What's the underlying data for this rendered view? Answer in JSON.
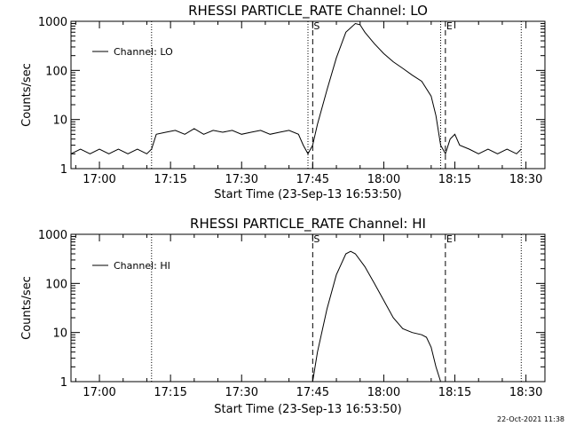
{
  "footer": {
    "timestamp": "22-Oct-2021 11:38"
  },
  "chart_data": [
    {
      "type": "line",
      "title": "RHESSI PARTICLE_RATE Channel: LO",
      "xlabel": "Start Time (23-Sep-13 16:53:50)",
      "ylabel": "Counts/sec",
      "yscale": "log",
      "xlim": [
        "16:54",
        "18:34"
      ],
      "ylim": [
        1,
        1000
      ],
      "x_ticks": [
        "17:00",
        "17:15",
        "17:30",
        "17:45",
        "18:00",
        "18:15",
        "18:30"
      ],
      "y_ticks": [
        "1",
        "10",
        "100",
        "1000"
      ],
      "legend": {
        "position": "top-left",
        "entries": [
          "Channel: LO"
        ]
      },
      "markers": {
        "S": "17:45",
        "E": "18:13"
      },
      "dotted_lines": [
        "17:11",
        "17:44",
        "18:12",
        "18:29"
      ],
      "series": [
        {
          "name": "Channel: LO",
          "x": [
            "16:54",
            "16:56",
            "16:58",
            "17:00",
            "17:02",
            "17:04",
            "17:06",
            "17:08",
            "17:10",
            "17:11",
            "17:12",
            "17:14",
            "17:16",
            "17:18",
            "17:20",
            "17:22",
            "17:24",
            "17:26",
            "17:28",
            "17:30",
            "17:32",
            "17:34",
            "17:36",
            "17:38",
            "17:40",
            "17:42",
            "17:43",
            "17:44",
            "17:45",
            "17:46",
            "17:48",
            "17:50",
            "17:52",
            "17:54",
            "17:55",
            "17:56",
            "17:58",
            "18:00",
            "18:02",
            "18:04",
            "18:06",
            "18:08",
            "18:10",
            "18:11",
            "18:12",
            "18:13",
            "18:14",
            "18:15",
            "18:16",
            "18:18",
            "18:20",
            "18:22",
            "18:24",
            "18:26",
            "18:28",
            "18:29"
          ],
          "values": [
            2,
            2.5,
            2,
            2.5,
            2,
            2.5,
            2,
            2.5,
            2,
            2.5,
            5,
            5.5,
            6,
            5,
            6.5,
            5,
            6,
            5.5,
            6,
            5,
            5.5,
            6,
            5,
            5.5,
            6,
            5,
            3,
            2,
            3,
            8,
            40,
            180,
            600,
            900,
            850,
            600,
            350,
            220,
            150,
            110,
            80,
            60,
            30,
            12,
            3,
            2,
            4,
            5,
            3,
            2.5,
            2,
            2.5,
            2,
            2.5,
            2,
            2.5
          ]
        }
      ]
    },
    {
      "type": "line",
      "title": "RHESSI PARTICLE_RATE Channel: HI",
      "xlabel": "Start Time (23-Sep-13 16:53:50)",
      "ylabel": "Counts/sec",
      "yscale": "log",
      "xlim": [
        "16:54",
        "18:34"
      ],
      "ylim": [
        1,
        1000
      ],
      "x_ticks": [
        "17:00",
        "17:15",
        "17:30",
        "17:45",
        "18:00",
        "18:15",
        "18:30"
      ],
      "y_ticks": [
        "1",
        "10",
        "100",
        "1000"
      ],
      "legend": {
        "position": "top-left",
        "entries": [
          "Channel: HI"
        ]
      },
      "markers": {
        "S": "17:45",
        "E": "18:13"
      },
      "dotted_lines": [
        "17:11",
        "18:29"
      ],
      "series": [
        {
          "name": "Channel: HI",
          "x": [
            "17:45",
            "17:46",
            "17:48",
            "17:50",
            "17:52",
            "17:53",
            "17:54",
            "17:56",
            "17:58",
            "18:00",
            "18:02",
            "18:04",
            "18:06",
            "18:08",
            "18:09",
            "18:10",
            "18:11",
            "18:12"
          ],
          "values": [
            1,
            4,
            30,
            150,
            400,
            450,
            400,
            220,
            100,
            45,
            20,
            12,
            10,
            9,
            8,
            5,
            2,
            1
          ]
        }
      ]
    }
  ]
}
